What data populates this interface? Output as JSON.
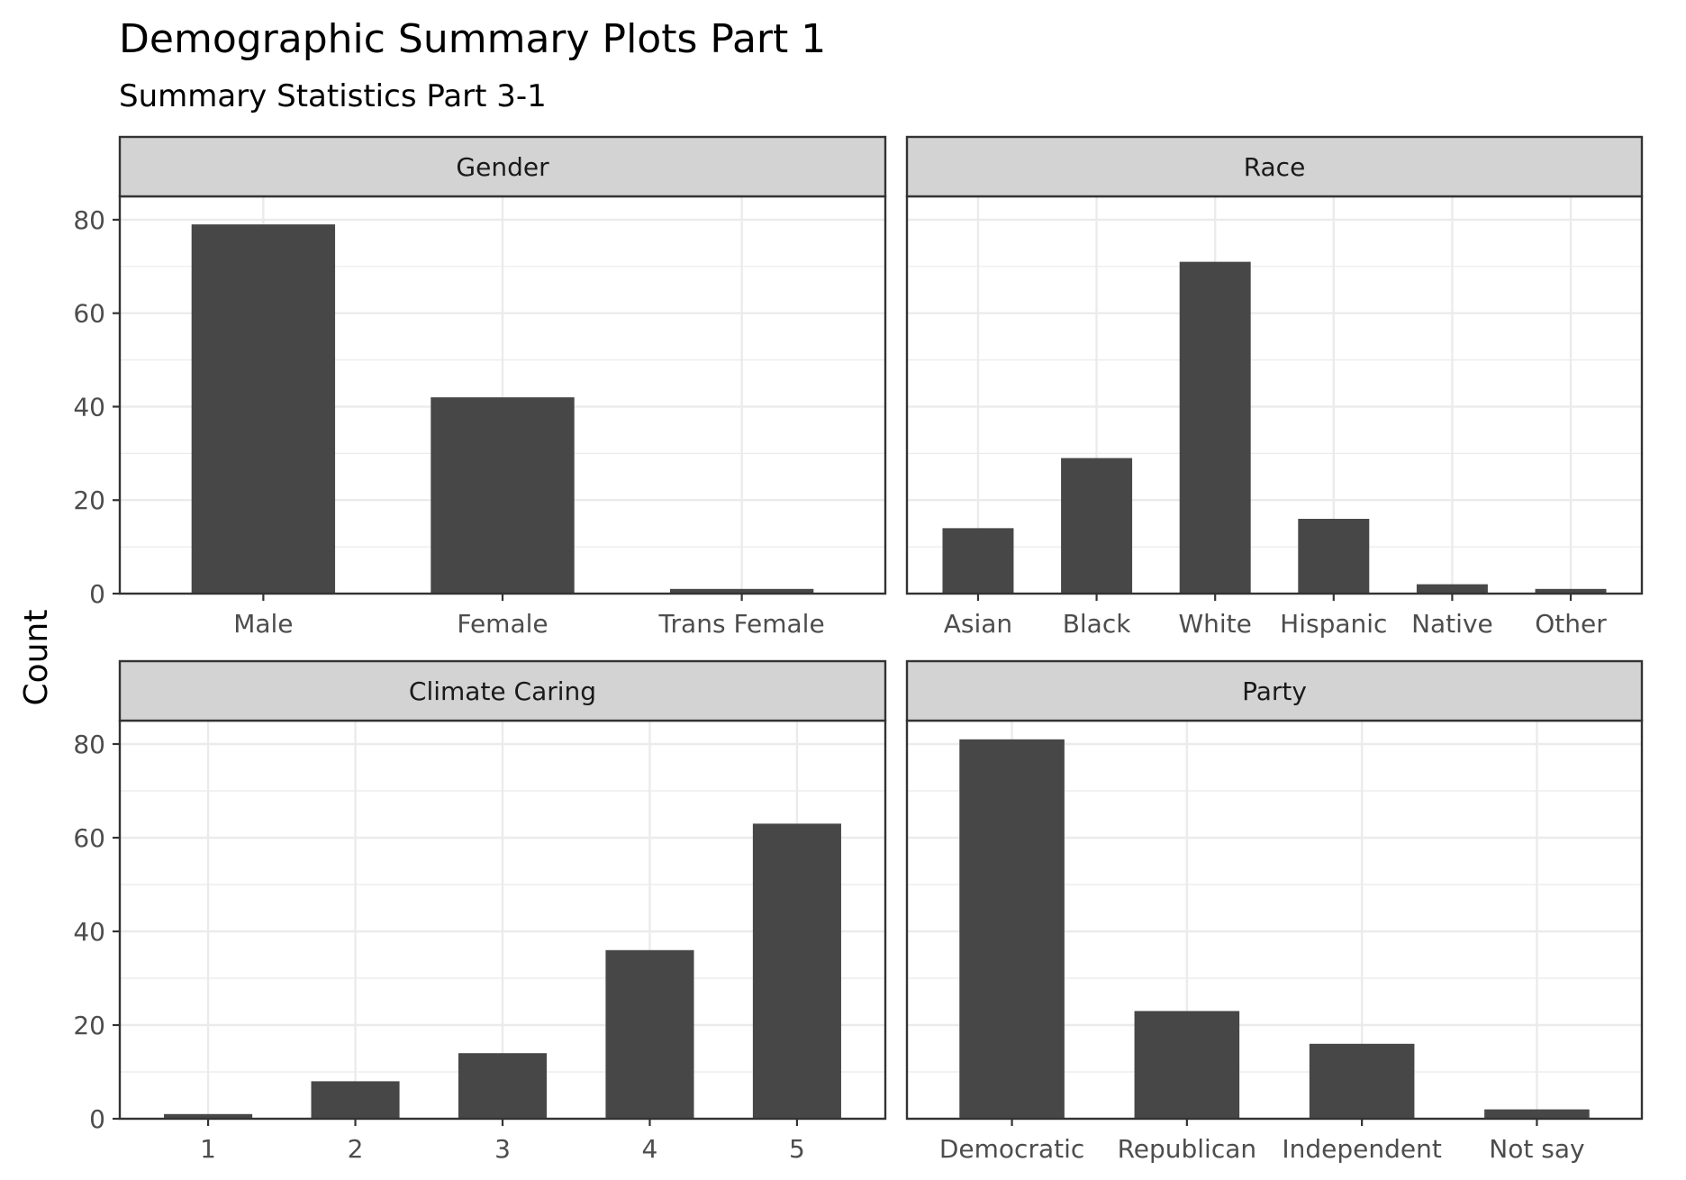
{
  "title": "Demographic Summary Plots Part 1",
  "subtitle": "Summary Statistics Part 3-1",
  "ylabel": "Count",
  "colors": {
    "bar": "#474747",
    "strip": "#d3d3d3",
    "grid": "#ebebeb",
    "border": "#333333"
  },
  "chart_data": [
    {
      "type": "bar",
      "facet": "Gender",
      "categories": [
        "Male",
        "Female",
        "Trans Female"
      ],
      "values": [
        79,
        42,
        1
      ],
      "ylim": [
        0,
        85
      ],
      "yticks": [
        0,
        20,
        40,
        60,
        80
      ]
    },
    {
      "type": "bar",
      "facet": "Race",
      "categories": [
        "Asian",
        "Black",
        "White",
        "Hispanic",
        "Native",
        "Other"
      ],
      "values": [
        14,
        29,
        71,
        16,
        2,
        1
      ],
      "ylim": [
        0,
        85
      ],
      "yticks": [
        0,
        20,
        40,
        60,
        80
      ]
    },
    {
      "type": "bar",
      "facet": "Climate Caring",
      "categories": [
        "1",
        "2",
        "3",
        "4",
        "5"
      ],
      "values": [
        1,
        8,
        14,
        36,
        63
      ],
      "ylim": [
        0,
        85
      ],
      "yticks": [
        0,
        20,
        40,
        60,
        80
      ]
    },
    {
      "type": "bar",
      "facet": "Party",
      "categories": [
        "Democratic",
        "Republican",
        "Independent",
        "Not say"
      ],
      "values": [
        81,
        23,
        16,
        2
      ],
      "ylim": [
        0,
        85
      ],
      "yticks": [
        0,
        20,
        40,
        60,
        80
      ]
    }
  ]
}
